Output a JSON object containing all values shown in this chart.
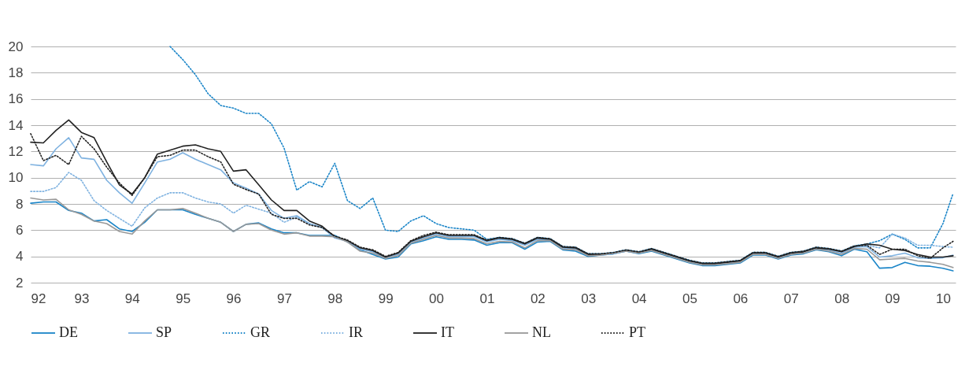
{
  "chart_data": {
    "type": "line",
    "x": [
      1992,
      1992.25,
      1992.5,
      1992.75,
      1993,
      1993.25,
      1993.5,
      1993.75,
      1994,
      1994.25,
      1994.5,
      1994.75,
      1995,
      1995.25,
      1995.5,
      1995.75,
      1996,
      1996.25,
      1996.5,
      1996.75,
      1997,
      1997.25,
      1997.5,
      1997.75,
      1998,
      1998.25,
      1998.5,
      1998.75,
      1999,
      1999.25,
      1999.5,
      1999.75,
      2000,
      2000.25,
      2000.5,
      2000.75,
      2001,
      2001.25,
      2001.5,
      2001.75,
      2002,
      2002.25,
      2002.5,
      2002.75,
      2003,
      2003.25,
      2003.5,
      2003.75,
      2004,
      2004.25,
      2004.5,
      2004.75,
      2005,
      2005.25,
      2005.5,
      2005.75,
      2006,
      2006.25,
      2006.5,
      2006.75,
      2007,
      2007.25,
      2007.5,
      2007.75,
      2008,
      2008.25,
      2008.5,
      2008.75,
      2009,
      2009.25,
      2009.5,
      2009.75,
      2010,
      2010.2
    ],
    "series": [
      {
        "name": "DE",
        "color": "#1a85c8",
        "line_style": "solid",
        "values": [
          8.05,
          8.15,
          8.15,
          7.5,
          7.3,
          6.7,
          6.8,
          6.1,
          5.9,
          6.6,
          7.55,
          7.55,
          7.55,
          7.2,
          6.9,
          6.6,
          5.9,
          6.45,
          6.55,
          6.1,
          5.8,
          5.8,
          5.6,
          5.6,
          5.6,
          5.1,
          4.5,
          4.15,
          3.8,
          3.95,
          4.95,
          5.2,
          5.5,
          5.3,
          5.3,
          5.25,
          4.85,
          5.05,
          5.05,
          4.55,
          5.1,
          5.15,
          4.5,
          4.4,
          4.0,
          4.1,
          4.2,
          4.4,
          4.2,
          4.4,
          4.1,
          3.8,
          3.5,
          3.3,
          3.3,
          3.4,
          3.5,
          4.1,
          4.1,
          3.8,
          4.1,
          4.2,
          4.5,
          4.35,
          4.05,
          4.55,
          4.35,
          3.1,
          3.15,
          3.55,
          3.3,
          3.25,
          3.1,
          2.9
        ]
      },
      {
        "name": "SP",
        "color": "#7fb2e0",
        "line_style": "solid",
        "values": [
          11.0,
          10.9,
          12.2,
          13.05,
          11.5,
          11.4,
          9.8,
          8.85,
          8.05,
          9.6,
          11.2,
          11.4,
          11.9,
          11.4,
          11.0,
          10.6,
          9.6,
          9.2,
          8.75,
          7.5,
          6.9,
          7.1,
          6.5,
          6.2,
          5.4,
          5.15,
          4.55,
          4.35,
          3.9,
          4.15,
          5.05,
          5.4,
          5.7,
          5.5,
          5.5,
          5.5,
          5.1,
          5.3,
          5.2,
          4.85,
          5.3,
          5.25,
          4.65,
          4.55,
          4.1,
          4.1,
          4.2,
          4.4,
          4.25,
          4.5,
          4.2,
          3.9,
          3.6,
          3.4,
          3.4,
          3.5,
          3.6,
          4.2,
          4.2,
          3.9,
          4.2,
          4.3,
          4.6,
          4.45,
          4.25,
          4.7,
          4.75,
          3.95,
          4.05,
          4.25,
          3.9,
          3.85,
          3.9,
          4.1
        ]
      },
      {
        "name": "GR",
        "color": "#1a85c8",
        "line_style": "dotted",
        "values": [
          null,
          null,
          null,
          null,
          null,
          null,
          null,
          null,
          null,
          null,
          null,
          20,
          19.0,
          17.85,
          16.4,
          15.5,
          15.3,
          14.9,
          14.9,
          14.1,
          12.25,
          9.05,
          9.7,
          9.3,
          11.1,
          8.25,
          7.65,
          8.45,
          6.0,
          5.9,
          6.7,
          7.1,
          6.5,
          6.2,
          6.1,
          6.0,
          5.3,
          5.45,
          5.35,
          5.0,
          5.45,
          5.35,
          4.75,
          4.7,
          4.2,
          4.2,
          4.3,
          4.5,
          4.35,
          4.6,
          4.3,
          4.0,
          3.7,
          3.5,
          3.5,
          3.6,
          3.7,
          4.3,
          4.3,
          4.0,
          4.3,
          4.4,
          4.7,
          4.6,
          4.4,
          4.8,
          4.95,
          5.2,
          5.7,
          5.3,
          4.65,
          4.65,
          6.5,
          8.8
        ]
      },
      {
        "name": "IR",
        "color": "#7fb2e0",
        "line_style": "dotted",
        "values": [
          8.95,
          8.95,
          9.25,
          10.4,
          9.8,
          8.25,
          7.5,
          6.9,
          6.3,
          7.7,
          8.45,
          8.85,
          8.85,
          8.45,
          8.15,
          8.0,
          7.3,
          7.9,
          7.6,
          7.3,
          6.6,
          7.0,
          6.5,
          6.2,
          5.5,
          5.2,
          4.6,
          4.4,
          3.95,
          4.2,
          5.1,
          5.5,
          5.75,
          5.55,
          5.6,
          5.55,
          5.15,
          5.35,
          5.25,
          4.9,
          5.35,
          5.3,
          4.7,
          4.6,
          4.1,
          4.15,
          4.25,
          4.45,
          4.3,
          4.55,
          4.25,
          3.95,
          3.65,
          3.45,
          3.45,
          3.55,
          3.65,
          4.25,
          4.25,
          3.95,
          4.25,
          4.35,
          4.65,
          4.55,
          4.35,
          4.75,
          4.85,
          4.65,
          5.7,
          5.4,
          4.85,
          4.85,
          4.75,
          4.7
        ]
      },
      {
        "name": "IT",
        "color": "#222222",
        "line_style": "solid",
        "values": [
          12.7,
          12.65,
          13.6,
          14.4,
          13.45,
          13.05,
          11.2,
          9.45,
          8.75,
          10.0,
          11.8,
          12.1,
          12.4,
          12.5,
          12.2,
          12.0,
          10.5,
          10.6,
          9.45,
          8.3,
          7.5,
          7.5,
          6.7,
          6.3,
          5.5,
          5.2,
          4.65,
          4.45,
          3.95,
          4.25,
          5.15,
          5.5,
          5.8,
          5.6,
          5.6,
          5.6,
          5.2,
          5.4,
          5.3,
          4.95,
          5.4,
          5.3,
          4.7,
          4.65,
          4.15,
          4.15,
          4.25,
          4.45,
          4.3,
          4.55,
          4.25,
          3.95,
          3.65,
          3.45,
          3.45,
          3.55,
          3.65,
          4.25,
          4.25,
          3.95,
          4.25,
          4.35,
          4.65,
          4.55,
          4.35,
          4.75,
          4.95,
          4.85,
          4.55,
          4.45,
          4.15,
          3.95,
          3.95,
          4.05
        ]
      },
      {
        "name": "NL",
        "color": "#999999",
        "line_style": "solid",
        "values": [
          8.45,
          8.3,
          8.35,
          7.55,
          7.2,
          6.7,
          6.5,
          5.9,
          5.7,
          6.7,
          7.55,
          7.55,
          7.65,
          7.3,
          6.9,
          6.6,
          5.9,
          6.45,
          6.5,
          6.0,
          5.7,
          5.8,
          5.55,
          5.55,
          5.5,
          5.1,
          4.4,
          4.25,
          3.85,
          4.05,
          5.0,
          5.3,
          5.6,
          5.4,
          5.4,
          5.35,
          4.95,
          5.15,
          5.1,
          4.65,
          5.2,
          5.2,
          4.55,
          4.5,
          4.05,
          4.1,
          4.25,
          4.4,
          4.25,
          4.45,
          4.15,
          3.85,
          3.55,
          3.35,
          3.35,
          3.45,
          3.55,
          4.15,
          4.15,
          3.85,
          4.15,
          4.25,
          4.55,
          4.4,
          4.15,
          4.6,
          4.55,
          3.75,
          3.8,
          3.85,
          3.65,
          3.55,
          3.4,
          3.15
        ]
      },
      {
        "name": "PT",
        "color": "#222222",
        "line_style": "dotted",
        "values": [
          13.35,
          11.3,
          11.7,
          11.0,
          13.15,
          12.2,
          10.8,
          9.6,
          8.65,
          10.0,
          11.6,
          11.7,
          12.1,
          12.1,
          11.6,
          11.2,
          9.5,
          9.1,
          8.75,
          7.2,
          6.9,
          6.9,
          6.4,
          6.2,
          5.55,
          5.25,
          4.7,
          4.5,
          4.0,
          4.3,
          5.2,
          5.6,
          5.85,
          5.65,
          5.65,
          5.65,
          5.25,
          5.45,
          5.35,
          5.0,
          5.45,
          5.35,
          4.75,
          4.7,
          4.2,
          4.2,
          4.3,
          4.5,
          4.35,
          4.6,
          4.3,
          4.0,
          3.7,
          3.5,
          3.5,
          3.6,
          3.7,
          4.3,
          4.3,
          4.0,
          4.3,
          4.4,
          4.7,
          4.6,
          4.4,
          4.8,
          4.85,
          4.15,
          4.55,
          4.55,
          4.05,
          3.85,
          4.65,
          5.15
        ]
      }
    ],
    "xlim": [
      1992,
      2010.25
    ],
    "xticks": [
      {
        "value": 1992,
        "label": "92"
      },
      {
        "value": 1993,
        "label": "93"
      },
      {
        "value": 1994,
        "label": "94"
      },
      {
        "value": 1995,
        "label": "95"
      },
      {
        "value": 1996,
        "label": "96"
      },
      {
        "value": 1997,
        "label": "97"
      },
      {
        "value": 1998,
        "label": "98"
      },
      {
        "value": 1999,
        "label": "99"
      },
      {
        "value": 2000,
        "label": "00"
      },
      {
        "value": 2001,
        "label": "01"
      },
      {
        "value": 2002,
        "label": "02"
      },
      {
        "value": 2003,
        "label": "03"
      },
      {
        "value": 2004,
        "label": "04"
      },
      {
        "value": 2005,
        "label": "05"
      },
      {
        "value": 2006,
        "label": "06"
      },
      {
        "value": 2007,
        "label": "07"
      },
      {
        "value": 2008,
        "label": "08"
      },
      {
        "value": 2009,
        "label": "09"
      },
      {
        "value": 2010,
        "label": "10"
      }
    ],
    "ylim": [
      2,
      20
    ],
    "yticks": [
      2,
      4,
      6,
      8,
      10,
      12,
      14,
      16,
      18,
      20
    ],
    "grid": "y",
    "legend": "bottom"
  }
}
